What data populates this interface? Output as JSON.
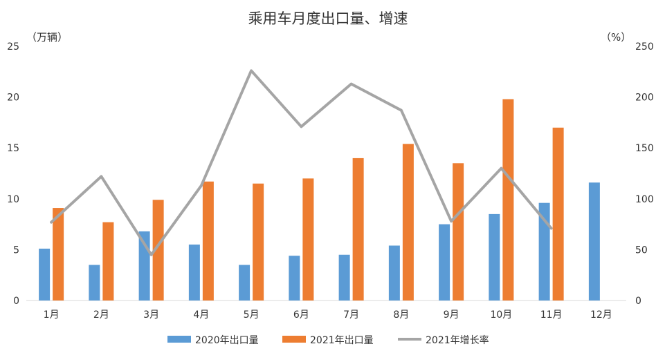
{
  "chart_data": {
    "type": "bar",
    "title": "乘用车月度出口量、增速",
    "y_left_unit": "（万辆）",
    "y_right_unit": "（%）",
    "categories": [
      "1月",
      "2月",
      "3月",
      "4月",
      "5月",
      "6月",
      "7月",
      "8月",
      "9月",
      "10月",
      "11月",
      "12月"
    ],
    "ylim_left": [
      0,
      25
    ],
    "yticks_left": [
      "0",
      "5",
      "10",
      "15",
      "20",
      "25"
    ],
    "ylim_right": [
      0,
      250
    ],
    "yticks_right": [
      "0",
      "50",
      "100",
      "150",
      "200",
      "250"
    ],
    "series": [
      {
        "name": "2020年出口量",
        "type": "bar",
        "axis": "left",
        "color": "#5b9bd5",
        "values": [
          5.1,
          3.5,
          6.8,
          5.5,
          3.5,
          4.4,
          4.5,
          5.4,
          7.5,
          8.5,
          9.6,
          11.6
        ]
      },
      {
        "name": "2021年出口量",
        "type": "bar",
        "axis": "left",
        "color": "#ed7d31",
        "values": [
          9.1,
          7.7,
          9.9,
          11.7,
          11.5,
          12.0,
          14.0,
          15.4,
          13.5,
          19.8,
          17.0,
          null
        ]
      },
      {
        "name": "2021年增长率",
        "type": "line",
        "axis": "right",
        "color": "#a5a5a5",
        "values": [
          77,
          122,
          45,
          113,
          226,
          171,
          213,
          187,
          78,
          130,
          71,
          null
        ]
      }
    ],
    "grid": false,
    "legend_position": "bottom"
  }
}
